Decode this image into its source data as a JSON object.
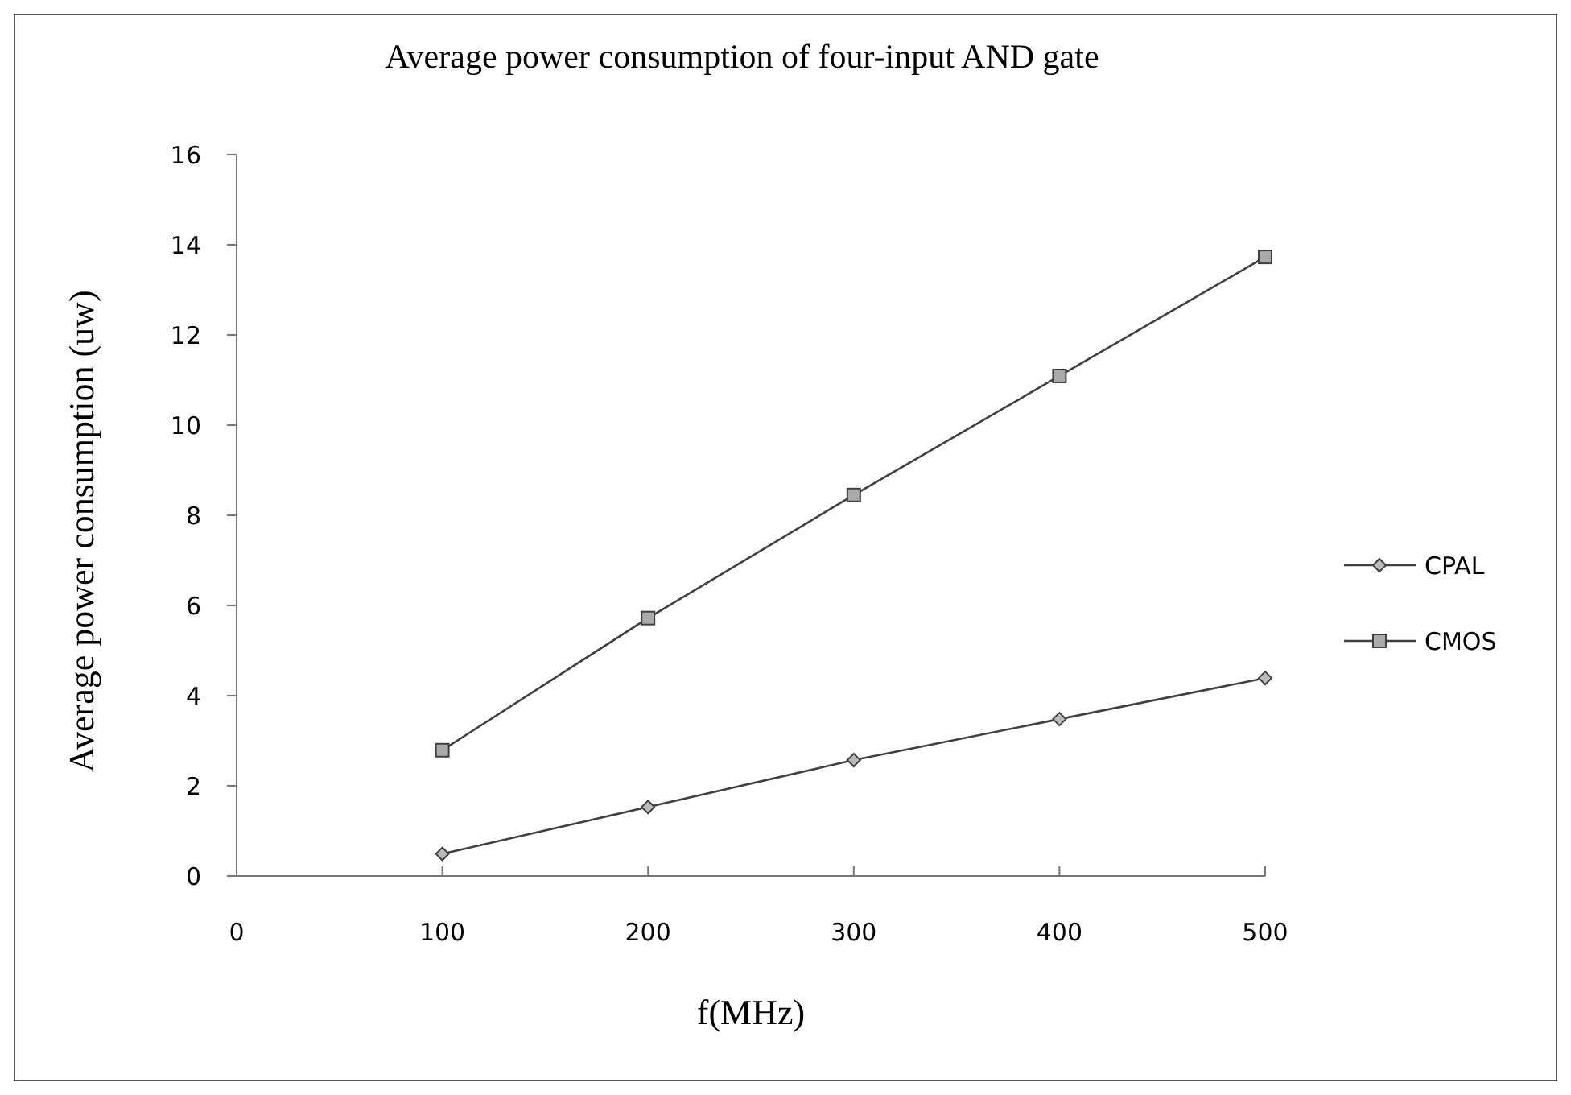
{
  "chart_data": {
    "type": "line",
    "title": "Average power consumption of four-input AND gate",
    "xlabel": "f(MHz)",
    "ylabel": "Average power consumption (uw)",
    "x": [
      100,
      200,
      300,
      400,
      500
    ],
    "series": [
      {
        "name": "CPAL",
        "color": "#404040",
        "marker": "diamond",
        "values": [
          0.49,
          1.53,
          2.57,
          3.48,
          4.39
        ]
      },
      {
        "name": "CMOS",
        "color": "#404040",
        "marker": "square",
        "values": [
          2.79,
          5.72,
          8.45,
          11.09,
          13.73
        ]
      }
    ],
    "xlim": [
      0,
      500
    ],
    "xticks": [
      0,
      100,
      200,
      300,
      400,
      500
    ],
    "ylim": [
      0,
      16
    ],
    "yticks": [
      0,
      2,
      4,
      6,
      8,
      10,
      12,
      14,
      16
    ],
    "grid": false,
    "legend": "right",
    "line_style": "solid"
  }
}
